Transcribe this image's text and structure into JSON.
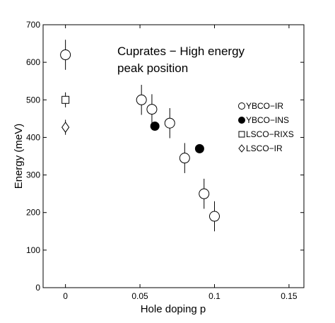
{
  "chart_data": {
    "type": "scatter",
    "title_lines": [
      "Cuprates − High energy",
      "peak position"
    ],
    "xlabel": "Hole doping p",
    "ylabel": "Energy (meV)",
    "xlim": [
      -0.015,
      0.16
    ],
    "ylim": [
      0,
      700
    ],
    "x_ticks": [
      0,
      0.05,
      0.1,
      0.15
    ],
    "x_tick_labels": [
      "0",
      "0.05",
      "0.1",
      "0.15"
    ],
    "y_ticks": [
      0,
      100,
      200,
      300,
      400,
      500,
      600,
      700
    ],
    "y_tick_labels": [
      "0",
      "100",
      "200",
      "300",
      "400",
      "500",
      "600",
      "700"
    ],
    "grid": false,
    "legend_position": "right",
    "series": [
      {
        "name": "YBCO−IR",
        "marker": "circle-open",
        "points": [
          {
            "x": 0,
            "y": 620,
            "err": 40
          },
          {
            "x": 0.051,
            "y": 500,
            "err": 40
          },
          {
            "x": 0.058,
            "y": 475,
            "err": 40
          },
          {
            "x": 0.07,
            "y": 438,
            "err": 40
          },
          {
            "x": 0.08,
            "y": 345,
            "err": 40
          },
          {
            "x": 0.093,
            "y": 250,
            "err": 40
          },
          {
            "x": 0.1,
            "y": 190,
            "err": 40
          }
        ]
      },
      {
        "name": "YBCO−INS",
        "marker": "circle-filled",
        "points": [
          {
            "x": 0.06,
            "y": 430
          },
          {
            "x": 0.09,
            "y": 370
          }
        ]
      },
      {
        "name": "LSCO−RIXS",
        "marker": "square-open",
        "points": [
          {
            "x": 0,
            "y": 500,
            "err": 20
          }
        ]
      },
      {
        "name": "LSCO−IR",
        "marker": "diamond-open",
        "points": [
          {
            "x": 0,
            "y": 427,
            "err": 20
          }
        ]
      }
    ]
  }
}
